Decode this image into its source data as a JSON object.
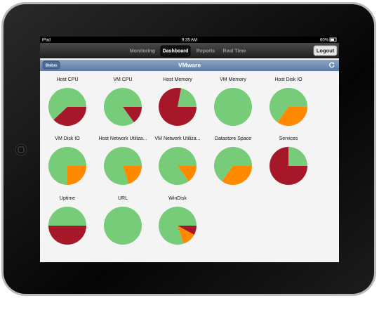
{
  "status_bar": {
    "carrier": "iPad",
    "time": "9:35 AM",
    "battery": "60%"
  },
  "tabs": [
    "Monitoring",
    "Dashboard",
    "Reports",
    "Real Time"
  ],
  "logout": "Logout",
  "nav": {
    "back": "Status",
    "title": "VMware"
  },
  "slice_colors": [
    "#76cc78",
    "#ff8a00",
    "#a6172a"
  ],
  "pies": [
    {
      "label": "Host CPU",
      "values": [
        62,
        0,
        38
      ]
    },
    {
      "label": "VM CPU",
      "values": [
        85,
        0,
        15
      ]
    },
    {
      "label": "Host Memory",
      "values": [
        22,
        0,
        78
      ]
    },
    {
      "label": "VM Memory",
      "values": [
        100,
        0,
        0
      ]
    },
    {
      "label": "Host Disk IO",
      "values": [
        65,
        35,
        0
      ]
    },
    {
      "label": "VM Disk IO",
      "values": [
        75,
        25,
        0
      ]
    },
    {
      "label": "Host Network Utiliza...",
      "values": [
        80,
        20,
        0
      ]
    },
    {
      "label": "VM Network Utiliza...",
      "values": [
        85,
        15,
        0
      ]
    },
    {
      "label": "Datastore Space",
      "values": [
        65,
        35,
        0
      ]
    },
    {
      "label": "Services",
      "values": [
        25,
        0,
        75
      ]
    },
    {
      "label": "Uptime",
      "values": [
        50,
        0,
        50
      ]
    },
    {
      "label": "URL",
      "values": [
        100,
        0,
        0
      ]
    },
    {
      "label": "WinDisk",
      "values": [
        80,
        12,
        8
      ]
    }
  ]
}
